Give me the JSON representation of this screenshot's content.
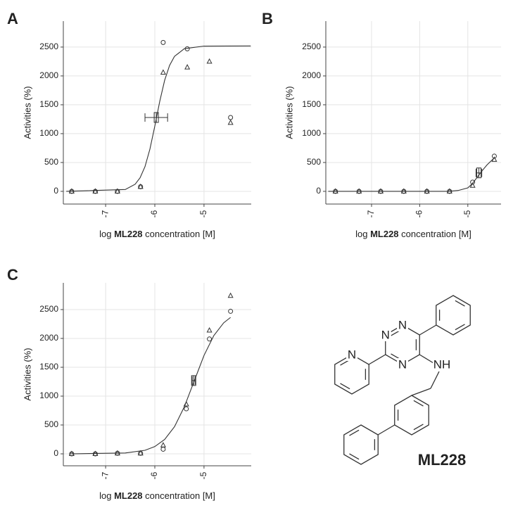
{
  "chart_data": [
    {
      "type": "scatter",
      "panel": "A",
      "y_label": "Activities (%)",
      "x_label": {
        "pre": "log ",
        "bold": "ML228",
        "post": " concentration [M]"
      },
      "xlim": [
        -7.86,
        -4.04
      ],
      "ylim": [
        -220,
        2950
      ],
      "xticks": [
        -7,
        -6,
        -5
      ],
      "yticks": [
        0,
        500,
        1000,
        1500,
        2000,
        2500
      ],
      "grid": true,
      "x": [
        -7.69,
        -7.21,
        -6.76,
        -6.29,
        -5.83,
        -5.34,
        -4.89,
        -4.46
      ],
      "series": [
        {
          "marker": "circle",
          "values": [
            0,
            0,
            0,
            80,
            2580,
            2470,
            null,
            1280
          ]
        },
        {
          "marker": "triangle",
          "values": [
            0,
            0,
            0,
            80,
            2060,
            2150,
            2250,
            1190
          ]
        }
      ],
      "fit": {
        "x": [
          -7.8,
          -6.6,
          -6.4,
          -6.3,
          -6.2,
          -6.1,
          -6.0,
          -5.9,
          -5.8,
          -5.7,
          -5.6,
          -5.4,
          -5.0,
          -4.05
        ],
        "values": [
          0,
          32,
          123,
          235,
          428,
          731,
          1130,
          1559,
          1925,
          2182,
          2339,
          2472,
          2517,
          2520
        ]
      },
      "error_bar": {
        "x": -5.97,
        "xerr": 0.23,
        "y": 1280
      }
    },
    {
      "type": "scatter",
      "panel": "B",
      "y_label": "Activities (%)",
      "x_label": {
        "pre": "log ",
        "bold": "ML228",
        "post": " concentration [M]"
      },
      "xlim": [
        -7.95,
        -4.31
      ],
      "ylim": [
        -220,
        2950
      ],
      "xticks": [
        -7,
        -6,
        -5
      ],
      "yticks": [
        0,
        500,
        1000,
        1500,
        2000,
        2500
      ],
      "grid": true,
      "x": [
        -7.75,
        -7.26,
        -6.81,
        -6.33,
        -5.85,
        -5.38,
        -4.9,
        -4.45
      ],
      "series": [
        {
          "marker": "circle",
          "values": [
            0,
            0,
            0,
            0,
            0,
            0,
            160,
            610
          ]
        },
        {
          "marker": "triangle",
          "values": [
            0,
            0,
            0,
            0,
            0,
            0,
            100,
            550
          ]
        }
      ],
      "fit": {
        "x": [
          -7.9,
          -5.4,
          -5.2,
          -5.0,
          -4.9,
          -4.8,
          -4.7,
          -4.6,
          -4.45
        ],
        "values": [
          0,
          0,
          15,
          60,
          140,
          250,
          360,
          460,
          580
        ]
      },
      "error_bar": {
        "x": -4.77,
        "xerr": 0.06,
        "y": 320
      }
    },
    {
      "type": "scatter",
      "panel": "C",
      "y_label": "Activities (%)",
      "x_label": {
        "pre": "log ",
        "bold": "ML228",
        "post": " concentration [M]"
      },
      "xlim": [
        -7.86,
        -4.04
      ],
      "ylim": [
        -207,
        2963
      ],
      "xticks": [
        -7,
        -6,
        -5
      ],
      "yticks": [
        0,
        500,
        1000,
        1500,
        2000,
        2500
      ],
      "grid": true,
      "x": [
        -7.69,
        -7.21,
        -6.76,
        -6.29,
        -5.83,
        -5.36,
        -4.89,
        -4.46
      ],
      "series": [
        {
          "marker": "circle",
          "values": [
            0,
            0,
            10,
            10,
            80,
            780,
            1990,
            2470
          ]
        },
        {
          "marker": "triangle",
          "values": [
            0,
            0,
            10,
            10,
            150,
            860,
            2140,
            2740
          ]
        }
      ],
      "fit": {
        "x": [
          -7.7,
          -6.6,
          -6.2,
          -6.0,
          -5.8,
          -5.6,
          -5.4,
          -5.2,
          -5.0,
          -4.8,
          -4.6,
          -4.46
        ],
        "values": [
          0,
          15,
          61,
          126,
          249,
          470,
          815,
          1260,
          1705,
          2050,
          2270,
          2364
        ]
      },
      "error_bar": {
        "x": -5.21,
        "xerr": 0.03,
        "y": 1270
      }
    }
  ],
  "structure": {
    "atoms": [
      "N",
      "N",
      "N",
      "N",
      "NH"
    ],
    "name": "ML228"
  }
}
